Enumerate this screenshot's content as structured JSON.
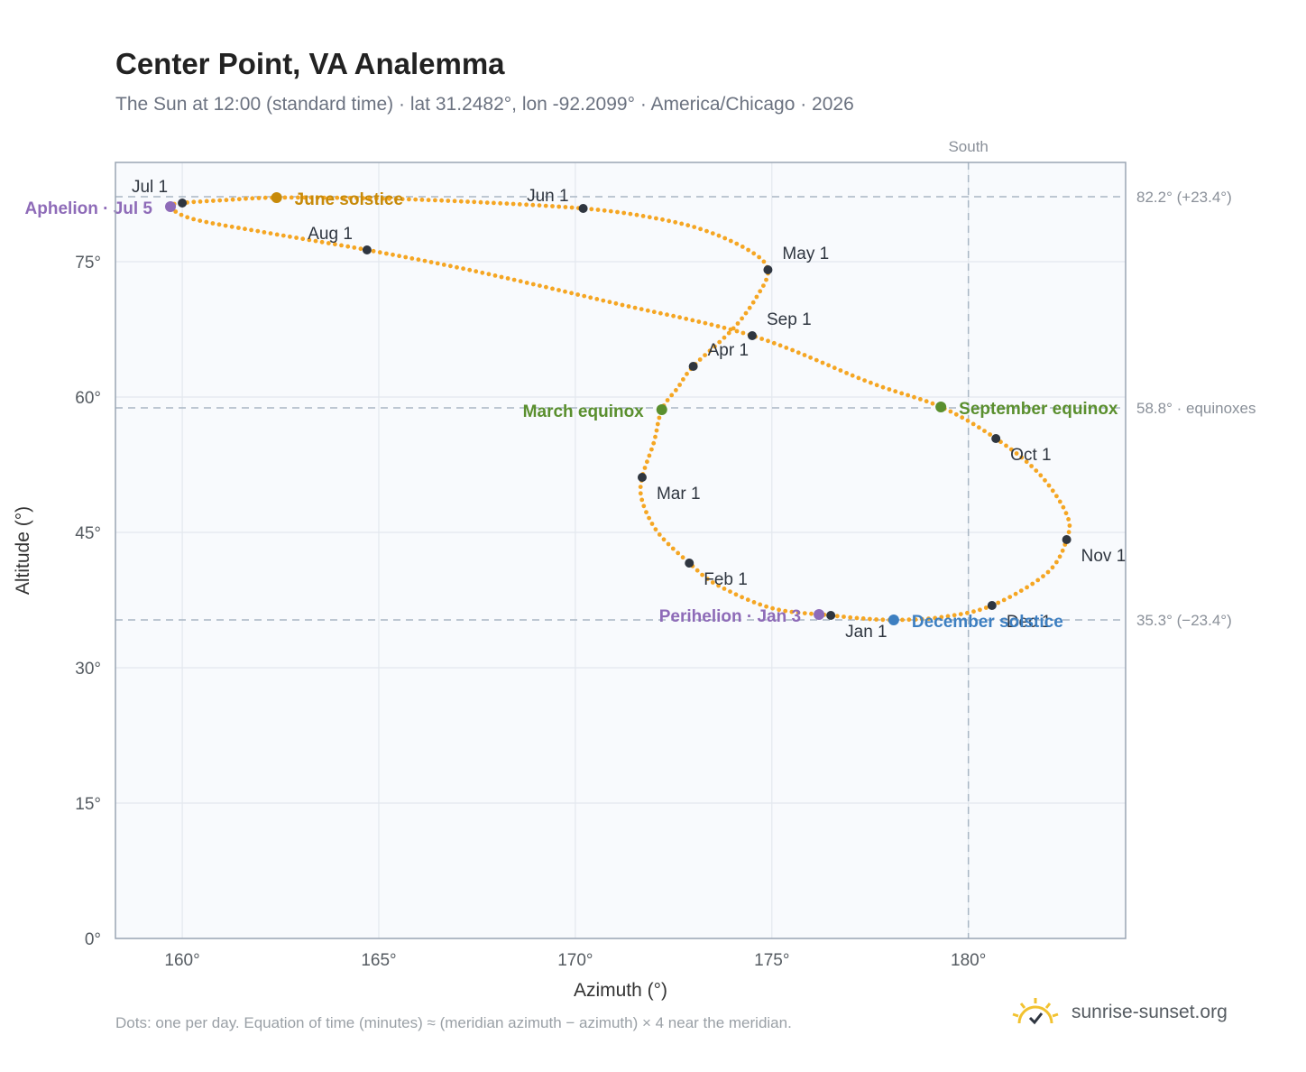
{
  "header": {
    "title": "Center Point, VA Analemma",
    "subtitle": "The Sun at 12:00 (standard time) · lat 31.2482°, lon -92.2099° · America/Chicago · 2026"
  },
  "footer": {
    "note": "Dots: one per day. Equation of time (minutes) ≈ (meridian azimuth − azimuth) × 4 near the meridian.",
    "brand": "sunrise-sunset.org"
  },
  "chart_data": {
    "type": "scatter",
    "xlabel": "Azimuth (°)",
    "ylabel": "Altitude (°)",
    "xlim": [
      158.3,
      184.0
    ],
    "ylim": [
      0,
      86
    ],
    "x_ticks": [
      160,
      165,
      170,
      175,
      180
    ],
    "y_ticks": [
      0,
      15,
      30,
      45,
      60,
      75
    ],
    "x_tick_labels": [
      "160°",
      "165°",
      "170°",
      "175°",
      "180°"
    ],
    "y_tick_labels": [
      "0°",
      "15°",
      "30°",
      "45°",
      "60°",
      "75°"
    ],
    "grid": true,
    "colors": {
      "curve": "#f5a623",
      "month_marker": "#2f3640",
      "solstice_june": "#c78a0a",
      "solstice_december": "#3d7fc1",
      "equinox": "#5a8f2e",
      "apsis": "#8e6bb8",
      "reference_line": "#a9b6c4",
      "plot_bg": "#f8fafd",
      "frame": "#9aa5b4"
    },
    "reference_lines": [
      {
        "axis": "y",
        "value": 82.2,
        "label": "82.2° (+23.4°)"
      },
      {
        "axis": "y",
        "value": 58.8,
        "label": "58.8° · equinoxes"
      },
      {
        "axis": "y",
        "value": 35.3,
        "label": "35.3° (−23.4°)"
      },
      {
        "axis": "x",
        "value": 180,
        "label": "South"
      }
    ],
    "month_markers": [
      {
        "label": "Jan 1",
        "az": 176.5,
        "alt": 35.8
      },
      {
        "label": "Feb 1",
        "az": 172.9,
        "alt": 41.6
      },
      {
        "label": "Mar 1",
        "az": 171.7,
        "alt": 51.1
      },
      {
        "label": "Apr 1",
        "az": 173.0,
        "alt": 63.4
      },
      {
        "label": "May 1",
        "az": 174.9,
        "alt": 74.1
      },
      {
        "label": "Jun 1",
        "az": 170.2,
        "alt": 80.9
      },
      {
        "label": "Jul 1",
        "az": 160.0,
        "alt": 81.5
      },
      {
        "label": "Aug 1",
        "az": 164.7,
        "alt": 76.3
      },
      {
        "label": "Sep 1",
        "az": 174.5,
        "alt": 66.8
      },
      {
        "label": "Oct 1",
        "az": 180.7,
        "alt": 55.4
      },
      {
        "label": "Nov 1",
        "az": 182.5,
        "alt": 44.2
      },
      {
        "label": "Dec 1",
        "az": 180.6,
        "alt": 36.9
      }
    ],
    "events": [
      {
        "label": "June solstice",
        "az": 162.4,
        "alt": 82.1,
        "kind": "solstice_june"
      },
      {
        "label": "December solstice",
        "az": 178.1,
        "alt": 35.3,
        "kind": "solstice_december"
      },
      {
        "label": "March equinox",
        "az": 172.2,
        "alt": 58.6,
        "kind": "equinox"
      },
      {
        "label": "September equinox",
        "az": 179.3,
        "alt": 58.9,
        "kind": "equinox"
      },
      {
        "label": "Aphelion · Jul 5",
        "az": 159.7,
        "alt": 81.1,
        "kind": "apsis"
      },
      {
        "label": "Perihelion · Jan 3",
        "az": 176.2,
        "alt": 35.9,
        "kind": "apsis"
      }
    ],
    "curve_keypoints": [
      [
        176.5,
        35.8
      ],
      [
        175.0,
        36.6
      ],
      [
        173.6,
        39.2
      ],
      [
        172.9,
        41.6
      ],
      [
        172.1,
        45.0
      ],
      [
        171.7,
        48.5
      ],
      [
        171.7,
        51.1
      ],
      [
        172.0,
        55.0
      ],
      [
        172.2,
        58.6
      ],
      [
        172.6,
        61.0
      ],
      [
        173.0,
        63.4
      ],
      [
        174.0,
        67.5
      ],
      [
        174.6,
        71.0
      ],
      [
        174.9,
        74.1
      ],
      [
        174.4,
        76.3
      ],
      [
        173.2,
        78.6
      ],
      [
        171.8,
        80.0
      ],
      [
        170.2,
        80.9
      ],
      [
        167.5,
        81.6
      ],
      [
        165.0,
        82.0
      ],
      [
        162.4,
        82.1
      ],
      [
        161.0,
        81.8
      ],
      [
        160.0,
        81.5
      ],
      [
        159.7,
        81.1
      ],
      [
        160.3,
        79.7
      ],
      [
        162.3,
        78.1
      ],
      [
        164.7,
        76.3
      ],
      [
        167.5,
        73.9
      ],
      [
        171.0,
        70.4
      ],
      [
        174.5,
        66.8
      ],
      [
        177.5,
        61.6
      ],
      [
        179.3,
        58.9
      ],
      [
        180.7,
        55.4
      ],
      [
        181.8,
        51.5
      ],
      [
        182.5,
        47.0
      ],
      [
        182.5,
        44.2
      ],
      [
        182.0,
        40.5
      ],
      [
        180.6,
        36.9
      ],
      [
        179.3,
        35.6
      ],
      [
        178.1,
        35.3
      ],
      [
        177.2,
        35.5
      ],
      [
        176.5,
        35.8
      ]
    ]
  }
}
